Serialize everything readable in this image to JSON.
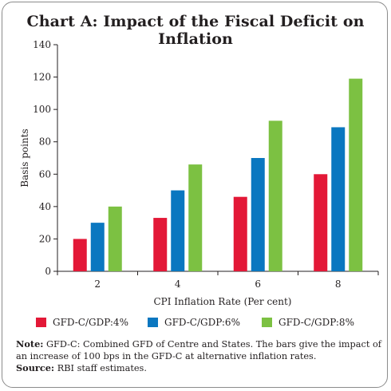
{
  "title": "Chart A: Impact of the Fiscal Deficit on Inflation",
  "chart_data": {
    "type": "bar",
    "categories": [
      "2",
      "4",
      "6",
      "8"
    ],
    "series": [
      {
        "name": "GFD-C/GDP:4%",
        "values": [
          20,
          33,
          46,
          60
        ],
        "color": "#e31837"
      },
      {
        "name": "GFD-C/GDP:6%",
        "values": [
          30,
          50,
          70,
          89
        ],
        "color": "#0a77c0"
      },
      {
        "name": "GFD-C/GDP:8%",
        "values": [
          40,
          66,
          93,
          119
        ],
        "color": "#7cc142"
      }
    ],
    "xlabel": "CPI Inflation Rate (Per cent)",
    "ylabel": "Basis points",
    "ylim": [
      0,
      140
    ],
    "yticks": [
      "0",
      "20",
      "40",
      "60",
      "80",
      "100",
      "120",
      "140"
    ],
    "grid": false,
    "legend_position": "bottom"
  },
  "note_label": "Note:",
  "note_text": "GFD-C: Combined GFD of Centre and States. The bars give the impact of an increase of 100 bps in the GFD-C at alternative inflation rates.",
  "source_label": "Source:",
  "source_text": "RBI staff estimates."
}
